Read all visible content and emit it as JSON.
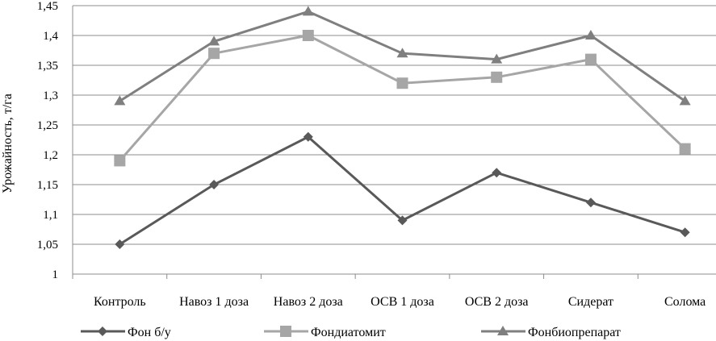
{
  "chart_data": {
    "type": "line",
    "title": "",
    "xlabel": "",
    "ylabel": "Урожайность, т/га",
    "ylim": [
      1,
      1.45
    ],
    "yticks": [
      1,
      1.05,
      1.1,
      1.15,
      1.2,
      1.25,
      1.3,
      1.35,
      1.4,
      1.45
    ],
    "ytick_labels": [
      "1",
      "1,05",
      "1,1",
      "1,15",
      "1,2",
      "1,25",
      "1,3",
      "1,35",
      "1,4",
      "1,45"
    ],
    "grid": true,
    "legend_position": "bottom",
    "categories": [
      "Контроль",
      "Навоз 1 доза",
      "Навоз 2 доза",
      "ОСВ 1 доза",
      "ОСВ 2 доза",
      "Сидерат",
      "Солома"
    ],
    "series": [
      {
        "name": "Фон б/у",
        "marker": "diamond",
        "color": "#595959",
        "values": [
          1.05,
          1.15,
          1.23,
          1.09,
          1.17,
          1.12,
          1.07
        ]
      },
      {
        "name": "Фондиатомит",
        "marker": "square",
        "color": "#a6a6a6",
        "values": [
          1.19,
          1.37,
          1.4,
          1.32,
          1.33,
          1.36,
          1.21
        ]
      },
      {
        "name": "Фонбиопрепарат",
        "marker": "triangle",
        "color": "#7f7f7f",
        "values": [
          1.29,
          1.39,
          1.44,
          1.37,
          1.36,
          1.4,
          1.29
        ]
      }
    ]
  }
}
